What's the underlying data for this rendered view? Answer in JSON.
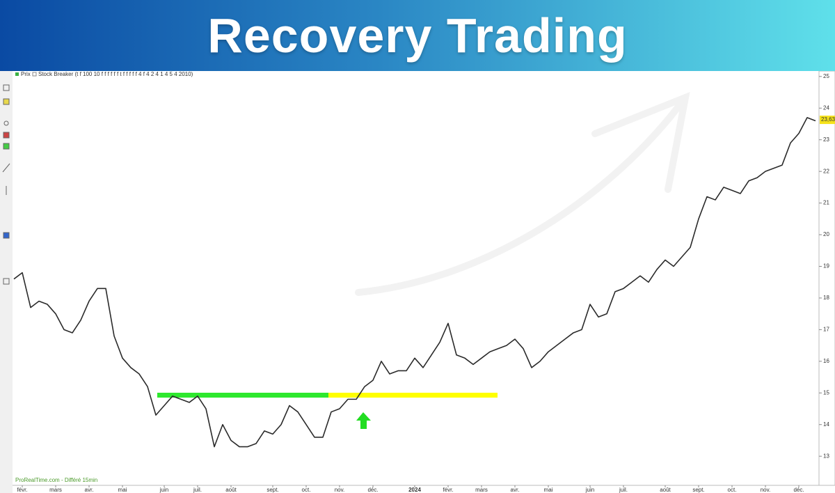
{
  "header": {
    "title": "Recovery Trading"
  },
  "legend": {
    "price": "Prix",
    "indicator": "Stock Breaker (t f 100 10 f f f f f f t f f f f f 4 f 4 2 4 1 4 5 4 2010)"
  },
  "footer": "ProRealTime.com - Différé 15min",
  "chart_data": {
    "type": "line",
    "categories": [
      null,
      "févr.",
      null,
      null,
      null,
      "mars",
      null,
      null,
      null,
      "avr.",
      null,
      null,
      null,
      "mai",
      null,
      null,
      null,
      null,
      "juin",
      null,
      null,
      null,
      "juil.",
      null,
      null,
      null,
      "août",
      null,
      null,
      null,
      null,
      "sept.",
      null,
      null,
      null,
      "oct.",
      null,
      null,
      null,
      "nov.",
      null,
      null,
      null,
      "déc.",
      null,
      null,
      null,
      null,
      "2024",
      null,
      null,
      null,
      "févr.",
      null,
      null,
      null,
      "mars",
      null,
      null,
      null,
      "avr.",
      null,
      null,
      null,
      "mai",
      null,
      null,
      null,
      null,
      "juin",
      null,
      null,
      null,
      "juil.",
      null,
      null,
      null,
      null,
      "août",
      null,
      null,
      null,
      "sept.",
      null,
      null,
      null,
      "oct.",
      null,
      null,
      null,
      "nov.",
      null,
      null,
      null,
      "déc.",
      null,
      null
    ],
    "series": [
      {
        "name": "Prix",
        "color": "#2a2a2a",
        "values": [
          18.6,
          18.8,
          17.7,
          17.9,
          17.8,
          17.5,
          17.0,
          16.9,
          17.3,
          17.9,
          18.3,
          18.3,
          16.8,
          16.1,
          15.8,
          15.6,
          15.2,
          14.3,
          14.6,
          14.9,
          14.8,
          14.7,
          14.9,
          14.5,
          13.3,
          14.0,
          13.5,
          13.3,
          13.3,
          13.4,
          13.8,
          13.7,
          14.0,
          14.6,
          14.4,
          14.0,
          13.6,
          13.6,
          14.4,
          14.5,
          14.8,
          14.8,
          15.2,
          15.4,
          16.0,
          15.6,
          15.7,
          15.7,
          16.1,
          15.8,
          16.2,
          16.6,
          17.2,
          16.2,
          16.1,
          15.9,
          16.1,
          16.3,
          16.4,
          16.5,
          16.7,
          16.4,
          15.8,
          16.0,
          16.3,
          16.5,
          16.7,
          16.9,
          17.0,
          17.8,
          17.4,
          17.5,
          18.2,
          18.3,
          18.5,
          18.7,
          18.5,
          18.9,
          19.2,
          19.0,
          19.3,
          19.6,
          20.5,
          21.2,
          21.1,
          21.5,
          21.4,
          21.3,
          21.7,
          21.8,
          22.0,
          22.1,
          22.2,
          22.9,
          23.2,
          23.7,
          23.6
        ]
      }
    ],
    "ylim": [
      12.08,
      25.15
    ],
    "yticks": [
      13,
      14,
      15,
      16,
      17,
      18,
      19,
      20,
      21,
      22,
      23,
      24,
      25
    ],
    "last_price": {
      "value": 23.63,
      "label": "23,63"
    },
    "levels": [
      {
        "value": 14.93,
        "color": "#2ee82e"
      },
      {
        "value": 14.93,
        "color": "#ffff00"
      }
    ],
    "grid": false
  }
}
